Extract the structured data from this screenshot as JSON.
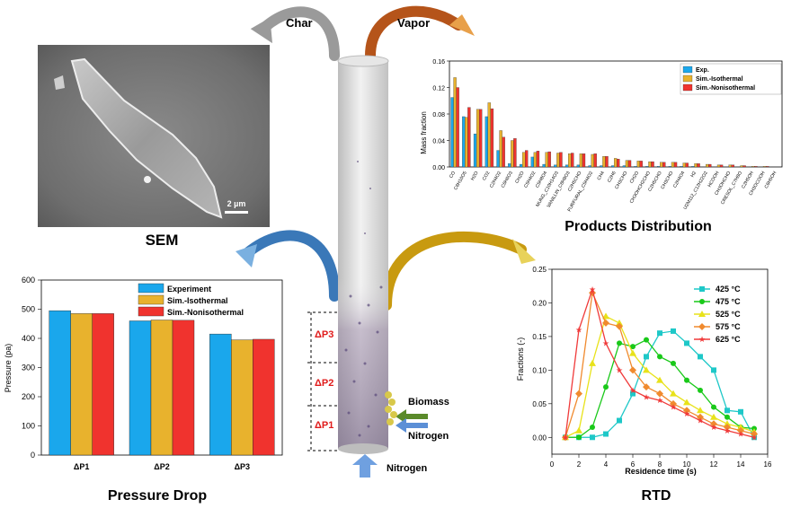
{
  "arrows": {
    "char": "Char",
    "vapor": "Vapor",
    "biomass": "Biomass",
    "nitrogen_side": "Nitrogen",
    "nitrogen_bottom": "Nitrogen"
  },
  "sections": {
    "sem": "SEM",
    "products": "Products Distribution",
    "pressure": "Pressure Drop",
    "rtd": "RTD"
  },
  "reactor": {
    "labels": [
      "ΔP3",
      "ΔP2",
      "ΔP1"
    ]
  },
  "sem_image": {
    "scale_bar": "2 µm"
  },
  "colors": {
    "experiment": "#1aa7ec",
    "isothermal": "#e8b22d",
    "nonisothermal": "#f0332e",
    "char_arrow": "#9a9a9a",
    "vapor_arrow": "#b5541a",
    "pressure_arrow": "#3a78b8",
    "rtd_arrow": "#c89a10",
    "dp_label": "#e01b1b"
  },
  "chart_data": [
    {
      "id": "products",
      "type": "bar",
      "ylabel": "Mass fraction",
      "ylim": [
        0,
        0.16
      ],
      "yticks": [
        "0.00",
        "0.04",
        "0.08",
        "0.12",
        "0.16"
      ],
      "legend": [
        "Exp.",
        "Sim.-Isothermal",
        "Sim.-Nonisothermal"
      ],
      "categories": [
        "CO",
        "C6H10O5",
        "H2O",
        "CO2",
        "C2H4O2",
        "C6H6O3",
        "CH2O",
        "C5H4O2",
        "C5H8O4",
        "MUNG_C10H14O3",
        "VANILLIN_C8H8O3",
        "C2H5CHO",
        "FURFURAL_C5H4O2",
        "CH4",
        "C2H6",
        "CH3CHO",
        "CH2O",
        "CH3OHCH2CHO",
        "C2H5CHO",
        "CH3CHO",
        "C2H4O4",
        "H2",
        "U2M112_C12H22O2",
        "HCOOH",
        "CH3OHCHO",
        "CRESOL_C7H8O",
        "C2H5OH",
        "CH3OCOOH",
        "C6H5OH"
      ],
      "series": [
        {
          "name": "Exp.",
          "values": [
            0.105,
            0.076,
            0.05,
            0.076,
            0.025,
            0.005,
            0.004,
            0.015,
            0.004,
            0.003,
            0.003,
            0.003,
            0.002,
            0.002,
            0.002,
            0.002,
            0.001,
            0.001,
            0.001,
            0.001,
            0.001,
            0.001,
            0.0,
            0.0,
            0.0,
            0.0,
            0.0,
            0.0,
            0.0
          ]
        },
        {
          "name": "Sim.-Isothermal",
          "values": [
            0.135,
            0.075,
            0.087,
            0.097,
            0.055,
            0.04,
            0.022,
            0.022,
            0.022,
            0.021,
            0.02,
            0.02,
            0.019,
            0.016,
            0.013,
            0.01,
            0.009,
            0.008,
            0.007,
            0.007,
            0.006,
            0.005,
            0.004,
            0.003,
            0.003,
            0.002,
            0.001,
            0.001,
            0.0
          ]
        },
        {
          "name": "Sim.-Nonisothermal",
          "values": [
            0.12,
            0.09,
            0.087,
            0.088,
            0.045,
            0.043,
            0.025,
            0.024,
            0.023,
            0.022,
            0.021,
            0.02,
            0.02,
            0.016,
            0.012,
            0.01,
            0.009,
            0.008,
            0.007,
            0.007,
            0.006,
            0.005,
            0.004,
            0.003,
            0.003,
            0.002,
            0.001,
            0.001,
            0.0
          ]
        }
      ]
    },
    {
      "id": "pressure",
      "type": "bar",
      "ylabel": "Pressure (pa)",
      "ylim": [
        0,
        600
      ],
      "yticks": [
        "0",
        "100",
        "200",
        "300",
        "400",
        "500",
        "600"
      ],
      "categories": [
        "ΔP1",
        "ΔP2",
        "ΔP3"
      ],
      "legend": [
        "Experiment",
        "Sim.-Isothermal",
        "Sim.-Nonisothermal"
      ],
      "series": [
        {
          "name": "Experiment",
          "values": [
            495,
            460,
            415
          ]
        },
        {
          "name": "Sim.-Isothermal",
          "values": [
            485,
            463,
            395
          ]
        },
        {
          "name": "Sim.-Nonisothermal",
          "values": [
            485,
            462,
            397
          ]
        }
      ]
    },
    {
      "id": "rtd",
      "type": "line",
      "xlabel": "Residence time (s)",
      "ylabel": "Fractions (-)",
      "xlim": [
        0,
        16
      ],
      "ylim": [
        -0.025,
        0.25
      ],
      "xticks": [
        "0",
        "2",
        "4",
        "6",
        "8",
        "10",
        "12",
        "14",
        "16"
      ],
      "yticks": [
        "0.00",
        "0.05",
        "0.10",
        "0.15",
        "0.20",
        "0.25"
      ],
      "series": [
        {
          "name": "425 °C",
          "color": "#1ec8c8",
          "marker": "square",
          "x": [
            1,
            2,
            3,
            4,
            5,
            6,
            7,
            8,
            9,
            10,
            11,
            12,
            13,
            14,
            15
          ],
          "y": [
            0.0,
            0.0,
            0.0,
            0.005,
            0.025,
            0.065,
            0.12,
            0.155,
            0.158,
            0.14,
            0.12,
            0.1,
            0.04,
            0.038,
            0.0
          ]
        },
        {
          "name": "475 °C",
          "color": "#19c919",
          "marker": "circle",
          "x": [
            1,
            2,
            3,
            4,
            5,
            6,
            7,
            8,
            9,
            10,
            11,
            12,
            13,
            14,
            15
          ],
          "y": [
            0.0,
            0.0,
            0.015,
            0.075,
            0.14,
            0.135,
            0.145,
            0.12,
            0.11,
            0.085,
            0.07,
            0.045,
            0.03,
            0.015,
            0.013
          ]
        },
        {
          "name": "525 °C",
          "color": "#e8e21a",
          "marker": "triangle",
          "x": [
            1,
            2,
            3,
            4,
            5,
            6,
            7,
            8,
            9,
            10,
            11,
            12,
            13,
            14,
            15
          ],
          "y": [
            0.0,
            0.01,
            0.11,
            0.18,
            0.17,
            0.125,
            0.1,
            0.085,
            0.065,
            0.052,
            0.04,
            0.03,
            0.02,
            0.015,
            0.008
          ]
        },
        {
          "name": "575 °C",
          "color": "#f08a2e",
          "marker": "diamond",
          "x": [
            1,
            2,
            3,
            4,
            5,
            6,
            7,
            8,
            9,
            10,
            11,
            12,
            13,
            14,
            15
          ],
          "y": [
            0.0,
            0.065,
            0.215,
            0.17,
            0.165,
            0.1,
            0.075,
            0.065,
            0.05,
            0.04,
            0.03,
            0.02,
            0.015,
            0.01,
            0.005
          ]
        },
        {
          "name": "625 °C",
          "color": "#f03a3a",
          "marker": "star",
          "x": [
            1,
            2,
            3,
            4,
            5,
            6,
            7,
            8,
            9,
            10,
            11,
            12,
            13,
            14,
            15
          ],
          "y": [
            0.0,
            0.16,
            0.22,
            0.14,
            0.1,
            0.07,
            0.06,
            0.055,
            0.045,
            0.035,
            0.025,
            0.015,
            0.01,
            0.005,
            0.0
          ]
        }
      ]
    }
  ]
}
